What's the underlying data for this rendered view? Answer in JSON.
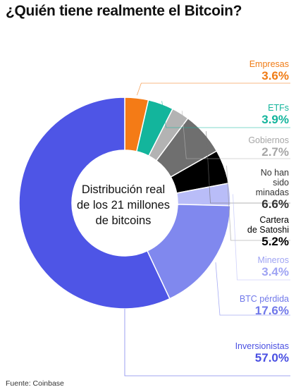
{
  "title": "¿Quién tiene realmente el Bitcoin?",
  "source": "Fuente: Coinbase",
  "chart_data": {
    "type": "pie",
    "center_label": [
      "Distribución real",
      "de los 21 millones",
      "de bitcoins"
    ],
    "slices": [
      {
        "name": "Empresas",
        "value": 3.6,
        "value_label": "3.6%",
        "color": "#f47b16",
        "text_color": "#f07c16"
      },
      {
        "name": "ETFs",
        "value": 3.9,
        "value_label": "3.9%",
        "color": "#13b59c",
        "text_color": "#13b59c"
      },
      {
        "name": "Gobiernos",
        "value": 2.7,
        "value_label": "2.7%",
        "color": "#b3b3b3",
        "text_color": "#a6a6a6"
      },
      {
        "name": "No han sido minadas",
        "value": 6.6,
        "value_label": "6.6%",
        "color": "#6f6f6f",
        "text_color": "#333333"
      },
      {
        "name": "Cartera de Satoshi",
        "value": 5.2,
        "value_label": "5.2%",
        "color": "#000000",
        "text_color": "#000000"
      },
      {
        "name": "Mineros",
        "value": 3.4,
        "value_label": "3.4%",
        "color": "#b9bdf8",
        "text_color": "#9fa4f3"
      },
      {
        "name": "BTC pérdida",
        "value": 17.6,
        "value_label": "17.6%",
        "color": "#8088ee",
        "text_color": "#7078ea"
      },
      {
        "name": "Inversionistas",
        "value": 57.0,
        "value_label": "57.0%",
        "color": "#4e55e6",
        "text_color": "#4a50e2"
      }
    ]
  }
}
